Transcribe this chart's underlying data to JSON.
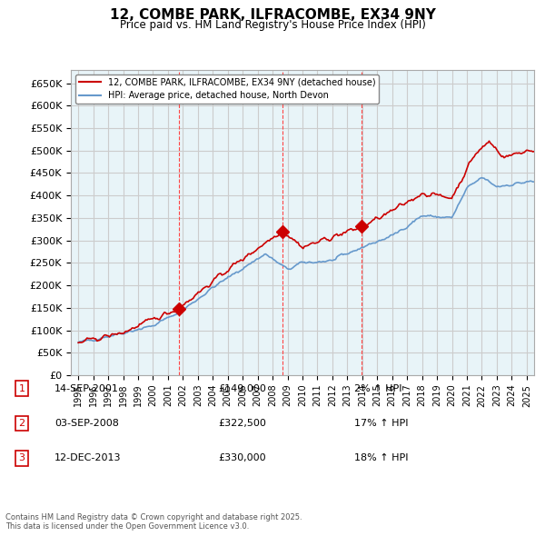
{
  "title": "12, COMBE PARK, ILFRACOMBE, EX34 9NY",
  "subtitle": "Price paid vs. HM Land Registry's House Price Index (HPI)",
  "xlabel": "",
  "ylabel": "",
  "ylim": [
    0,
    680000
  ],
  "ytick_step": 50000,
  "background_color": "#ffffff",
  "grid_color": "#cccccc",
  "plot_bg_color": "#e8f4f8",
  "line1_color": "#cc0000",
  "line2_color": "#6699cc",
  "sale_marker_color": "#cc0000",
  "sale_vline_color": "#ff4444",
  "transactions": [
    {
      "num": 1,
      "date_label": "14-SEP-2001",
      "price": 149000,
      "pct": "2%",
      "direction": "↑",
      "x_year": 2001.71
    },
    {
      "num": 2,
      "date_label": "03-SEP-2008",
      "price": 322500,
      "pct": "17%",
      "direction": "↑",
      "x_year": 2008.67
    },
    {
      "num": 3,
      "date_label": "12-DEC-2013",
      "price": 330000,
      "pct": "18%",
      "direction": "↑",
      "x_year": 2013.95
    }
  ],
  "legend_label1": "12, COMBE PARK, ILFRACOMBE, EX34 9NY (detached house)",
  "legend_label2": "HPI: Average price, detached house, North Devon",
  "footer": "Contains HM Land Registry data © Crown copyright and database right 2025.\nThis data is licensed under the Open Government Licence v3.0.",
  "xlim": [
    1994.5,
    2025.5
  ]
}
